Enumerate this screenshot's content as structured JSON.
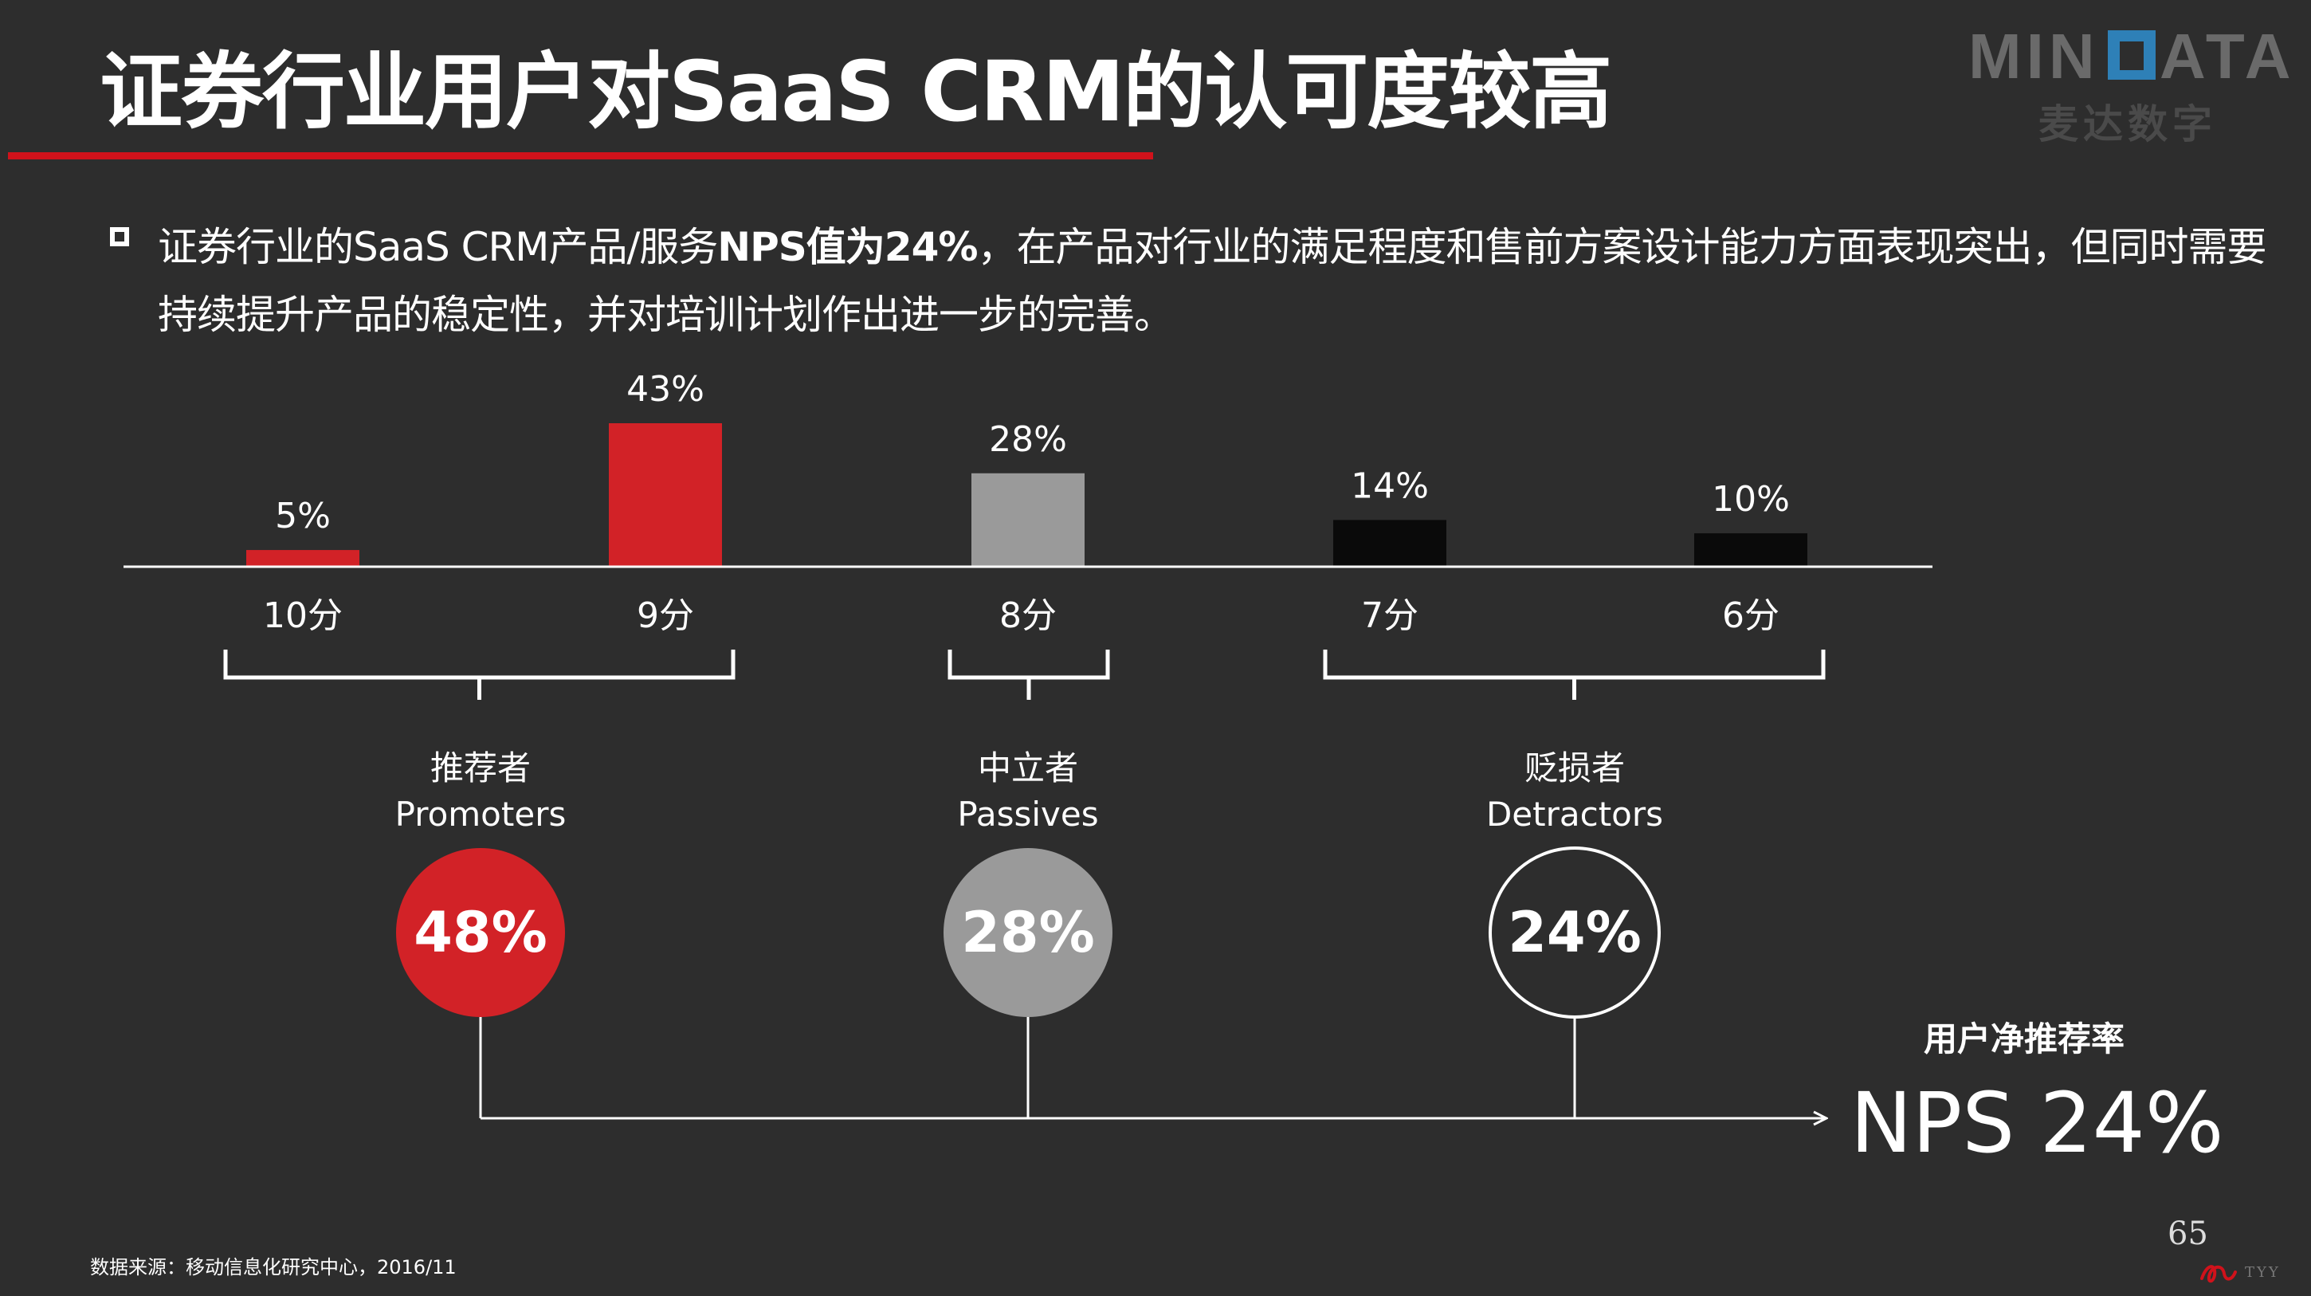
{
  "slide": {
    "title": "证券行业用户对SaaS CRM的认可度较高",
    "bullet_line1_pre": "证券行业的SaaS CRM产品/服务",
    "bullet_line1_bold": "NPS值为24%",
    "bullet_line1_post": "，在产品对行业的满足程度和售前方案设计能力方面表现突出，但同时需要",
    "bullet_line2": "持续提升产品的稳定性，并对培训计划作出进一步的完善。"
  },
  "brand": {
    "logo_text": "MINDATA",
    "logo_subtext": "麦达数字",
    "accent_color": "#d0121b"
  },
  "chart_data": {
    "type": "bar",
    "categories": [
      "10分",
      "9分",
      "8分",
      "7分",
      "6分"
    ],
    "values": [
      5,
      43,
      28,
      14,
      10
    ],
    "value_labels": [
      "5%",
      "43%",
      "28%",
      "14%",
      "10%"
    ],
    "bar_colors": [
      "#d22227",
      "#d22227",
      "#9a9a9a",
      "#0a0a0a",
      "#0a0a0a"
    ],
    "unit": "%",
    "ylim": [
      0,
      43
    ],
    "grid": false,
    "groups": [
      {
        "name_cn": "推荐者",
        "name_en": "Promoters",
        "value": 48,
        "label": "48%",
        "categories": [
          "10分",
          "9分"
        ],
        "fill": "#d22227",
        "stroke": "none"
      },
      {
        "name_cn": "中立者",
        "name_en": "Passives",
        "value": 28,
        "label": "28%",
        "categories": [
          "8分"
        ],
        "fill": "#9a9a9a",
        "stroke": "none"
      },
      {
        "name_cn": "贬损者",
        "name_en": "Detractors",
        "value": 24,
        "label": "24%",
        "categories": [
          "7分",
          "6分"
        ],
        "fill": "none",
        "stroke": "#ffffff"
      }
    ],
    "result": {
      "caption": "用户净推荐率",
      "label": "NPS",
      "value": 24,
      "value_label": "24%"
    }
  },
  "footer": {
    "source": "数据来源：移动信息化研究中心，2016/11",
    "page_number": "65",
    "mark_text": "TYY"
  }
}
